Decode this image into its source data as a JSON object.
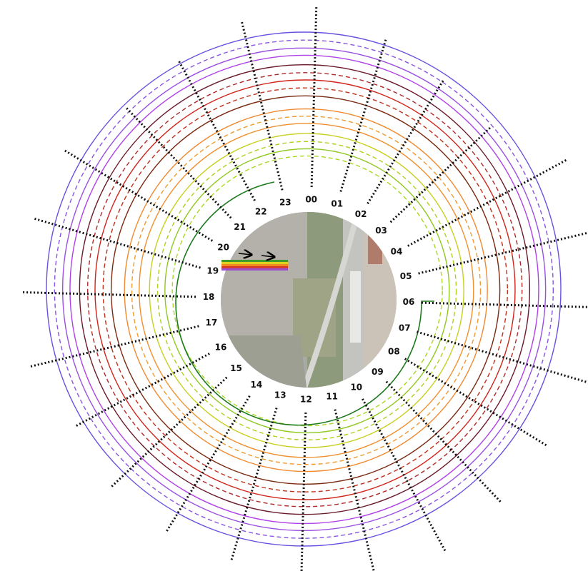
{
  "hour_labels": [
    "00",
    "01",
    "02",
    "03",
    "04",
    "05",
    "06",
    "07",
    "08",
    "09",
    "10",
    "11",
    "12",
    "13",
    "14",
    "15",
    "16",
    "17",
    "18",
    "19",
    "20",
    "21",
    "22",
    "23"
  ]
}
